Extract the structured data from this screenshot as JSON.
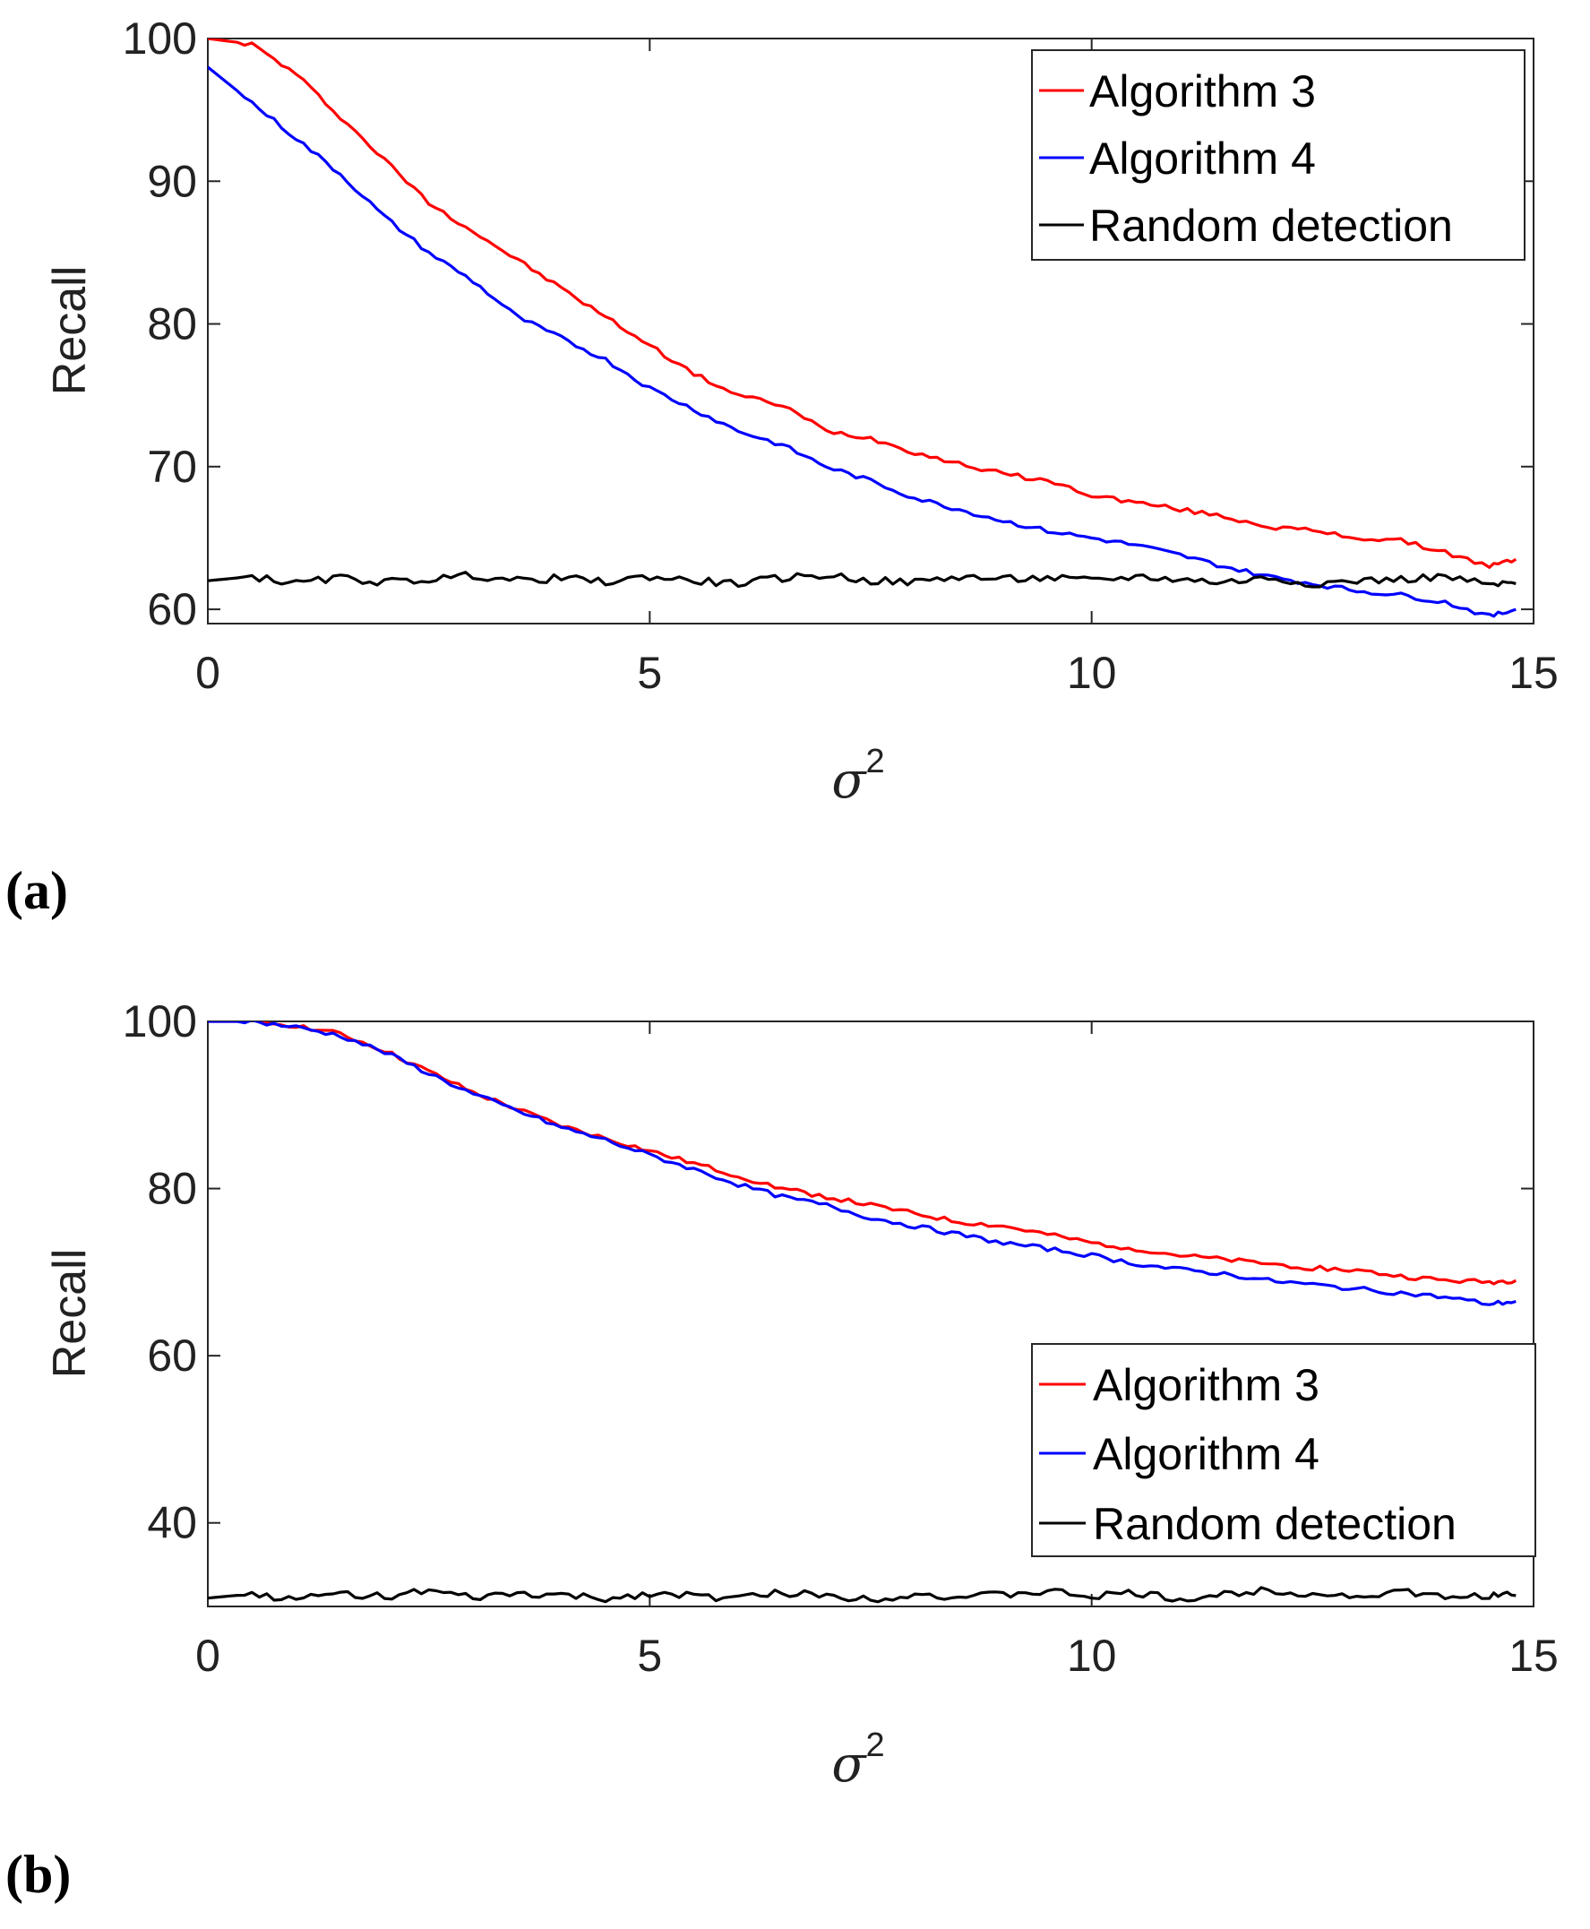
{
  "chart_data": [
    {
      "type": "line",
      "panel_label": "(a)",
      "xlabel_symbol": "σ",
      "xlabel_superscript": "2",
      "ylabel": "Recall",
      "xlim": [
        0,
        15
      ],
      "ylim": [
        59,
        100
      ],
      "xticks": [
        0,
        5,
        10,
        15
      ],
      "yticks": [
        60,
        70,
        80,
        90,
        100
      ],
      "legend_position": "top-right",
      "series": [
        {
          "name": "Algorithm 3",
          "color": "#ff0000",
          "x": [
            0,
            0.5,
            1,
            1.5,
            2,
            2.5,
            3,
            3.5,
            4,
            4.5,
            5,
            5.5,
            6,
            6.5,
            7,
            7.5,
            8,
            8.5,
            9,
            9.5,
            10,
            10.5,
            11,
            11.5,
            12,
            12.5,
            13,
            13.5,
            14,
            14.5,
            14.8
          ],
          "y": [
            100,
            99.6,
            97.5,
            94.5,
            91.5,
            88.5,
            86.5,
            84.5,
            82.5,
            80.5,
            78.5,
            76.5,
            75,
            74.3,
            72.5,
            72,
            71,
            70.2,
            69.5,
            69,
            68,
            67.5,
            67,
            66.5,
            65.8,
            65.5,
            65,
            64.8,
            64,
            63,
            63.5
          ]
        },
        {
          "name": "Algorithm 4",
          "color": "#0000ff",
          "x": [
            0,
            0.5,
            1,
            1.5,
            2,
            2.5,
            3,
            3.5,
            4,
            4.5,
            5,
            5.5,
            6,
            6.5,
            7,
            7.5,
            8,
            8.5,
            9,
            9.5,
            10,
            10.5,
            11,
            11.5,
            12,
            12.5,
            13,
            13.5,
            14,
            14.5,
            14.8
          ],
          "y": [
            98,
            95.5,
            93,
            90.5,
            87.5,
            85,
            83,
            80.5,
            79,
            77.5,
            75.5,
            74,
            72.5,
            71.5,
            70,
            69,
            67.8,
            67,
            66.2,
            65.5,
            65,
            64.5,
            63.8,
            63,
            62.3,
            61.8,
            61.3,
            61,
            60.5,
            59.5,
            60
          ]
        },
        {
          "name": "Random detection",
          "color": "#000000",
          "x": [
            0,
            0.5,
            1,
            1.5,
            2,
            2.5,
            3,
            3.5,
            4,
            4.5,
            5,
            5.5,
            6,
            6.5,
            7,
            7.5,
            8,
            8.5,
            9,
            9.5,
            10,
            10.5,
            11,
            11.5,
            12,
            12.5,
            13,
            13.5,
            14,
            14.5,
            14.8
          ],
          "y": [
            62,
            62.3,
            61.8,
            62.2,
            61.9,
            62.1,
            62.4,
            62,
            62.2,
            61.9,
            62.3,
            62,
            61.8,
            62.2,
            62.4,
            62,
            61.9,
            62.3,
            62.1,
            62.2,
            62,
            62.3,
            62.1,
            61.9,
            62.2,
            61.8,
            62,
            62.1,
            62.3,
            61.7,
            61.8
          ]
        }
      ]
    },
    {
      "type": "line",
      "panel_label": "(b)",
      "xlabel_symbol": "σ",
      "xlabel_superscript": "2",
      "ylabel": "Recall",
      "xlim": [
        0,
        15
      ],
      "ylim": [
        30,
        100
      ],
      "xticks": [
        0,
        5,
        10,
        15
      ],
      "yticks": [
        40,
        60,
        80,
        100
      ],
      "legend_position": "bottom-right",
      "series": [
        {
          "name": "Algorithm 3",
          "color": "#ff0000",
          "x": [
            0,
            0.5,
            1,
            1.5,
            2,
            2.5,
            3,
            3.5,
            4,
            4.5,
            5,
            5.5,
            6,
            6.5,
            7,
            7.5,
            8,
            8.5,
            9,
            9.5,
            10,
            10.5,
            11,
            11.5,
            12,
            12.5,
            13,
            13.5,
            14,
            14.5,
            14.8
          ],
          "y": [
            100,
            100,
            99.5,
            98.5,
            96.5,
            94,
            91.5,
            89.5,
            87.5,
            86,
            84.5,
            83,
            81.5,
            80,
            79,
            78,
            77,
            76,
            75.5,
            74.5,
            73.5,
            72.8,
            72,
            71.5,
            71,
            70.5,
            70.2,
            69.5,
            69,
            68.8,
            69
          ]
        },
        {
          "name": "Algorithm 4",
          "color": "#0000ff",
          "x": [
            0,
            0.5,
            1,
            1.5,
            2,
            2.5,
            3,
            3.5,
            4,
            4.5,
            5,
            5.5,
            6,
            6.5,
            7,
            7.5,
            8,
            8.5,
            9,
            9.5,
            10,
            10.5,
            11,
            11.5,
            12,
            12.5,
            13,
            13.5,
            14,
            14.5,
            14.8
          ],
          "y": [
            100,
            100,
            99.3,
            98.3,
            96.3,
            93.8,
            91.3,
            89.3,
            87.3,
            85.8,
            84,
            82.3,
            80.5,
            79,
            78,
            76.5,
            75.5,
            74.5,
            73.5,
            72.8,
            72,
            71,
            70.3,
            69.8,
            69,
            68.5,
            68,
            67.5,
            67,
            66.2,
            66.5
          ]
        },
        {
          "name": "Random detection",
          "color": "#000000",
          "x": [
            0,
            0.5,
            1,
            1.5,
            2,
            2.5,
            3,
            3.5,
            4,
            4.5,
            5,
            5.5,
            6,
            6.5,
            7,
            7.5,
            8,
            8.5,
            9,
            9.5,
            10,
            10.5,
            11,
            11.5,
            12,
            12.5,
            13,
            13.5,
            14,
            14.5,
            14.8
          ],
          "y": [
            31,
            31.5,
            30.8,
            31.6,
            31.2,
            31.8,
            31,
            31.5,
            31.3,
            30.9,
            31.6,
            31.2,
            31,
            31.7,
            31.3,
            30.9,
            31.5,
            31.1,
            31.4,
            31.8,
            31.2,
            31.6,
            30.8,
            31.4,
            32,
            31.5,
            31.2,
            31.8,
            31,
            31.4,
            31.3
          ]
        }
      ]
    }
  ]
}
